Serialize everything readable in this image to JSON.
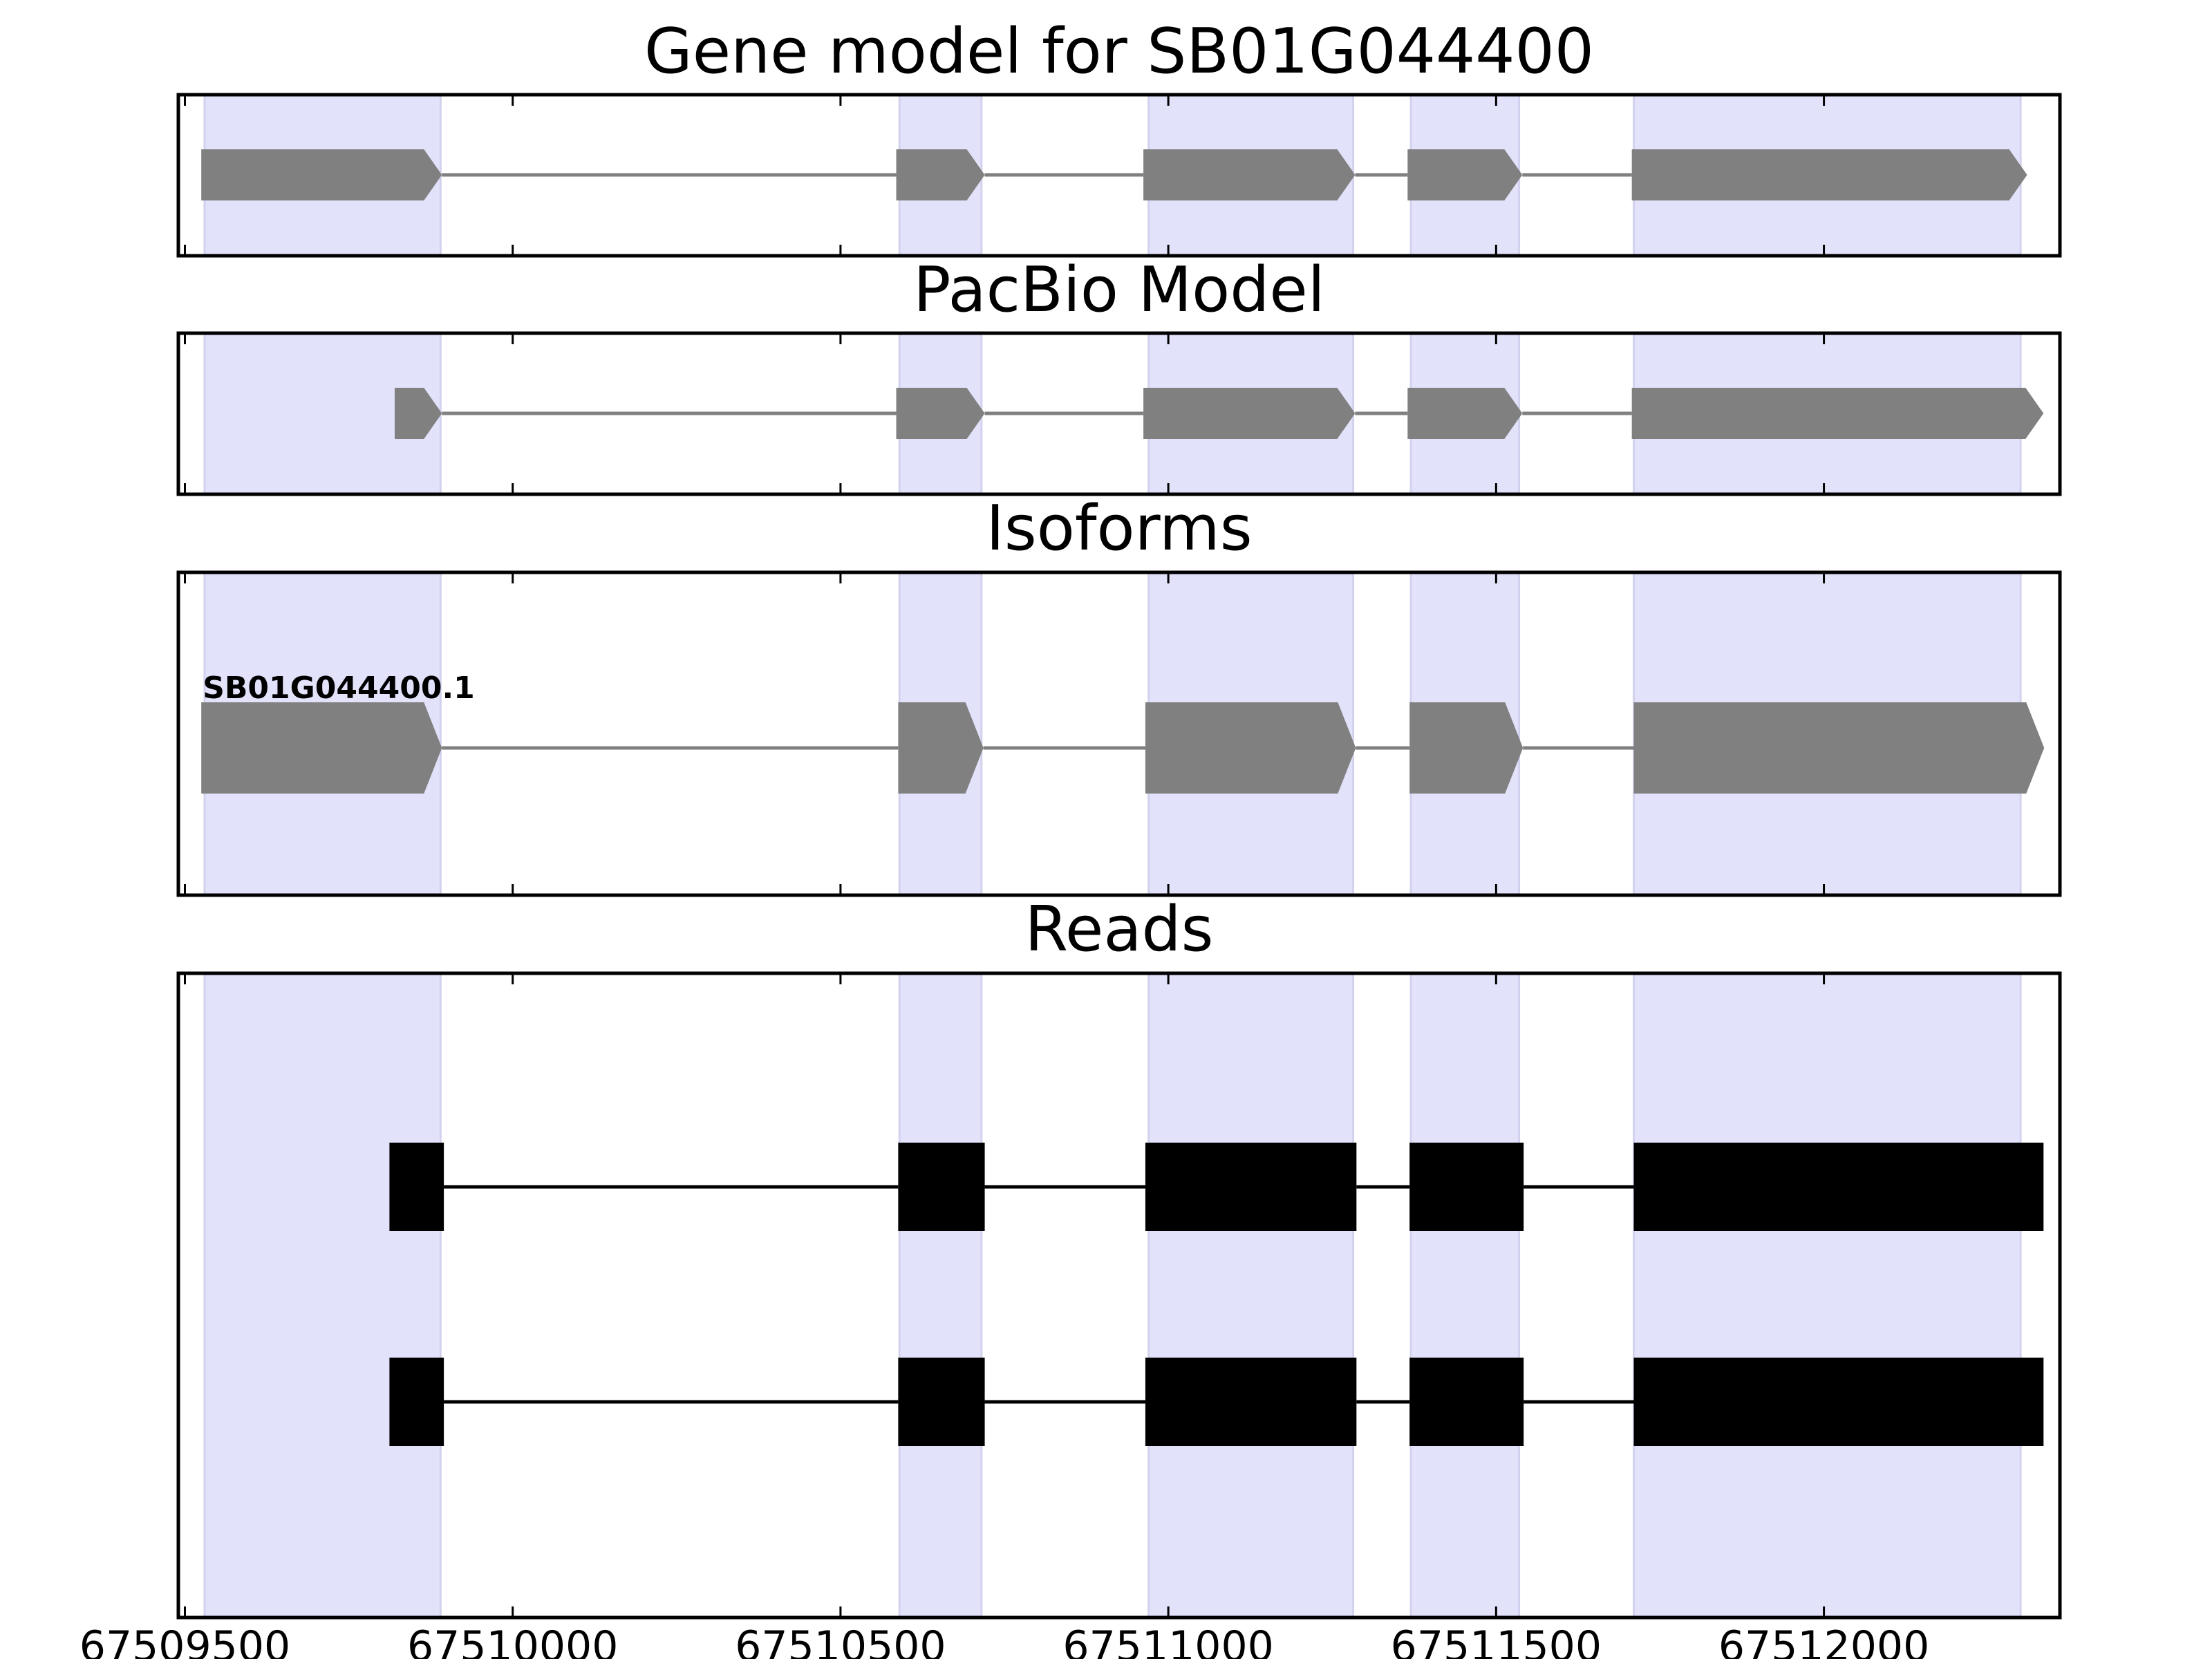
{
  "chart_data": {
    "type": "gene_track",
    "xlim": [
      67509490,
      67512360
    ],
    "xticks": [
      67509500,
      67510000,
      67510500,
      67511000,
      67511500,
      67512000
    ],
    "xtick_labels": [
      "67509500",
      "67510000",
      "67510500",
      "67511000",
      "67511500",
      "67512000"
    ],
    "highlight_color": "#e2e2fb",
    "highlight_regions": [
      [
        67509530,
        67509890
      ],
      [
        67510590,
        67510715
      ],
      [
        67510970,
        67511282
      ],
      [
        67511370,
        67511535
      ],
      [
        67511710,
        67512300
      ]
    ],
    "panels": [
      {
        "title": "Gene model for SB01G044400",
        "kind": "model",
        "color": "#808080",
        "exons": [
          [
            67509525,
            67509892
          ],
          [
            67510585,
            67510720
          ],
          [
            67510962,
            67511285
          ],
          [
            67511365,
            67511540
          ],
          [
            67511707,
            67512310
          ]
        ]
      },
      {
        "title": "PacBio Model",
        "kind": "model",
        "color": "#808080",
        "exons": [
          [
            67509820,
            67509892
          ],
          [
            67510585,
            67510720
          ],
          [
            67510962,
            67511285
          ],
          [
            67511365,
            67511540
          ],
          [
            67511707,
            67512335
          ]
        ]
      },
      {
        "title": "Isoforms",
        "kind": "isoform",
        "color": "#808080",
        "isoforms": [
          {
            "label": "SB01G044400.1",
            "exons": [
              [
                67509525,
                67509892
              ],
              [
                67510588,
                67510718
              ],
              [
                67510965,
                67511286
              ],
              [
                67511368,
                67511541
              ],
              [
                67511710,
                67512336
              ]
            ]
          }
        ]
      },
      {
        "title": "Reads",
        "kind": "reads",
        "color": "#000000",
        "reads": [
          {
            "exons": [
              [
                67509812,
                67509895
              ],
              [
                67510588,
                67510720
              ],
              [
                67510965,
                67511287
              ],
              [
                67511368,
                67511542
              ],
              [
                67511710,
                67512335
              ]
            ]
          },
          {
            "exons": [
              [
                67509812,
                67509895
              ],
              [
                67510588,
                67510720
              ],
              [
                67510965,
                67511287
              ],
              [
                67511368,
                67511542
              ],
              [
                67511710,
                67512335
              ]
            ]
          }
        ]
      }
    ]
  }
}
